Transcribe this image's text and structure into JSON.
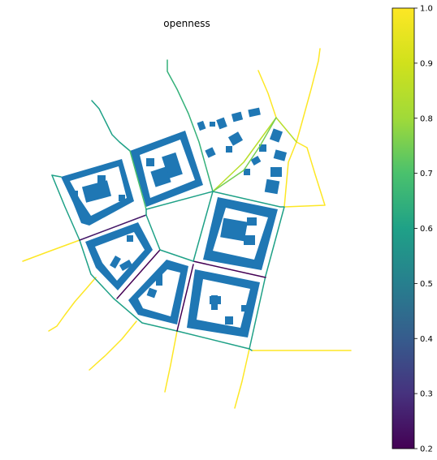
{
  "chart_data": {
    "type": "map",
    "title": "openness",
    "colormap": "viridis",
    "colorbar": {
      "range": [
        0.2,
        1.0
      ],
      "ticks": [
        "0.2",
        "0.3",
        "0.4",
        "0.5",
        "0.6",
        "0.7",
        "0.8",
        "0.9",
        "1.0"
      ],
      "placement": "right"
    },
    "building_color": "#1f77b4",
    "street_segments": [
      {
        "id": "north-west-stub",
        "openness": 0.6
      },
      {
        "id": "north-stub",
        "openness": 0.65
      },
      {
        "id": "north-east-a",
        "openness": 1.0
      },
      {
        "id": "north-east-b",
        "openness": 1.0
      },
      {
        "id": "east-a",
        "openness": 1.0
      },
      {
        "id": "east-b",
        "openness": 1.0
      },
      {
        "id": "west",
        "openness": 1.0
      },
      {
        "id": "south-west-a",
        "openness": 1.0
      },
      {
        "id": "south-west-b",
        "openness": 1.0
      },
      {
        "id": "south-a",
        "openness": 1.0
      },
      {
        "id": "south-b",
        "openness": 1.0
      },
      {
        "id": "south-east",
        "openness": 1.0
      },
      {
        "id": "ring-north",
        "openness": 0.7
      },
      {
        "id": "ring-north-east",
        "openness": 0.85
      },
      {
        "id": "ring-east",
        "openness": 0.75
      },
      {
        "id": "ring-east-lower",
        "openness": 0.6
      },
      {
        "id": "ring-west",
        "openness": 0.6
      },
      {
        "id": "ring-north-west",
        "openness": 0.6
      },
      {
        "id": "ring-south-west",
        "openness": 0.6
      },
      {
        "id": "ring-south",
        "openness": 0.6
      },
      {
        "id": "ring-south-east",
        "openness": 0.6
      },
      {
        "id": "inner-west",
        "openness": 0.25
      },
      {
        "id": "inner-south-west",
        "openness": 0.2
      },
      {
        "id": "inner-south",
        "openness": 0.2
      },
      {
        "id": "inner-east",
        "openness": 0.2
      },
      {
        "id": "inner-north",
        "openness": 0.6
      },
      {
        "id": "inner-north-east",
        "openness": 0.6
      },
      {
        "id": "inner-north-west",
        "openness": 0.6
      }
    ]
  }
}
